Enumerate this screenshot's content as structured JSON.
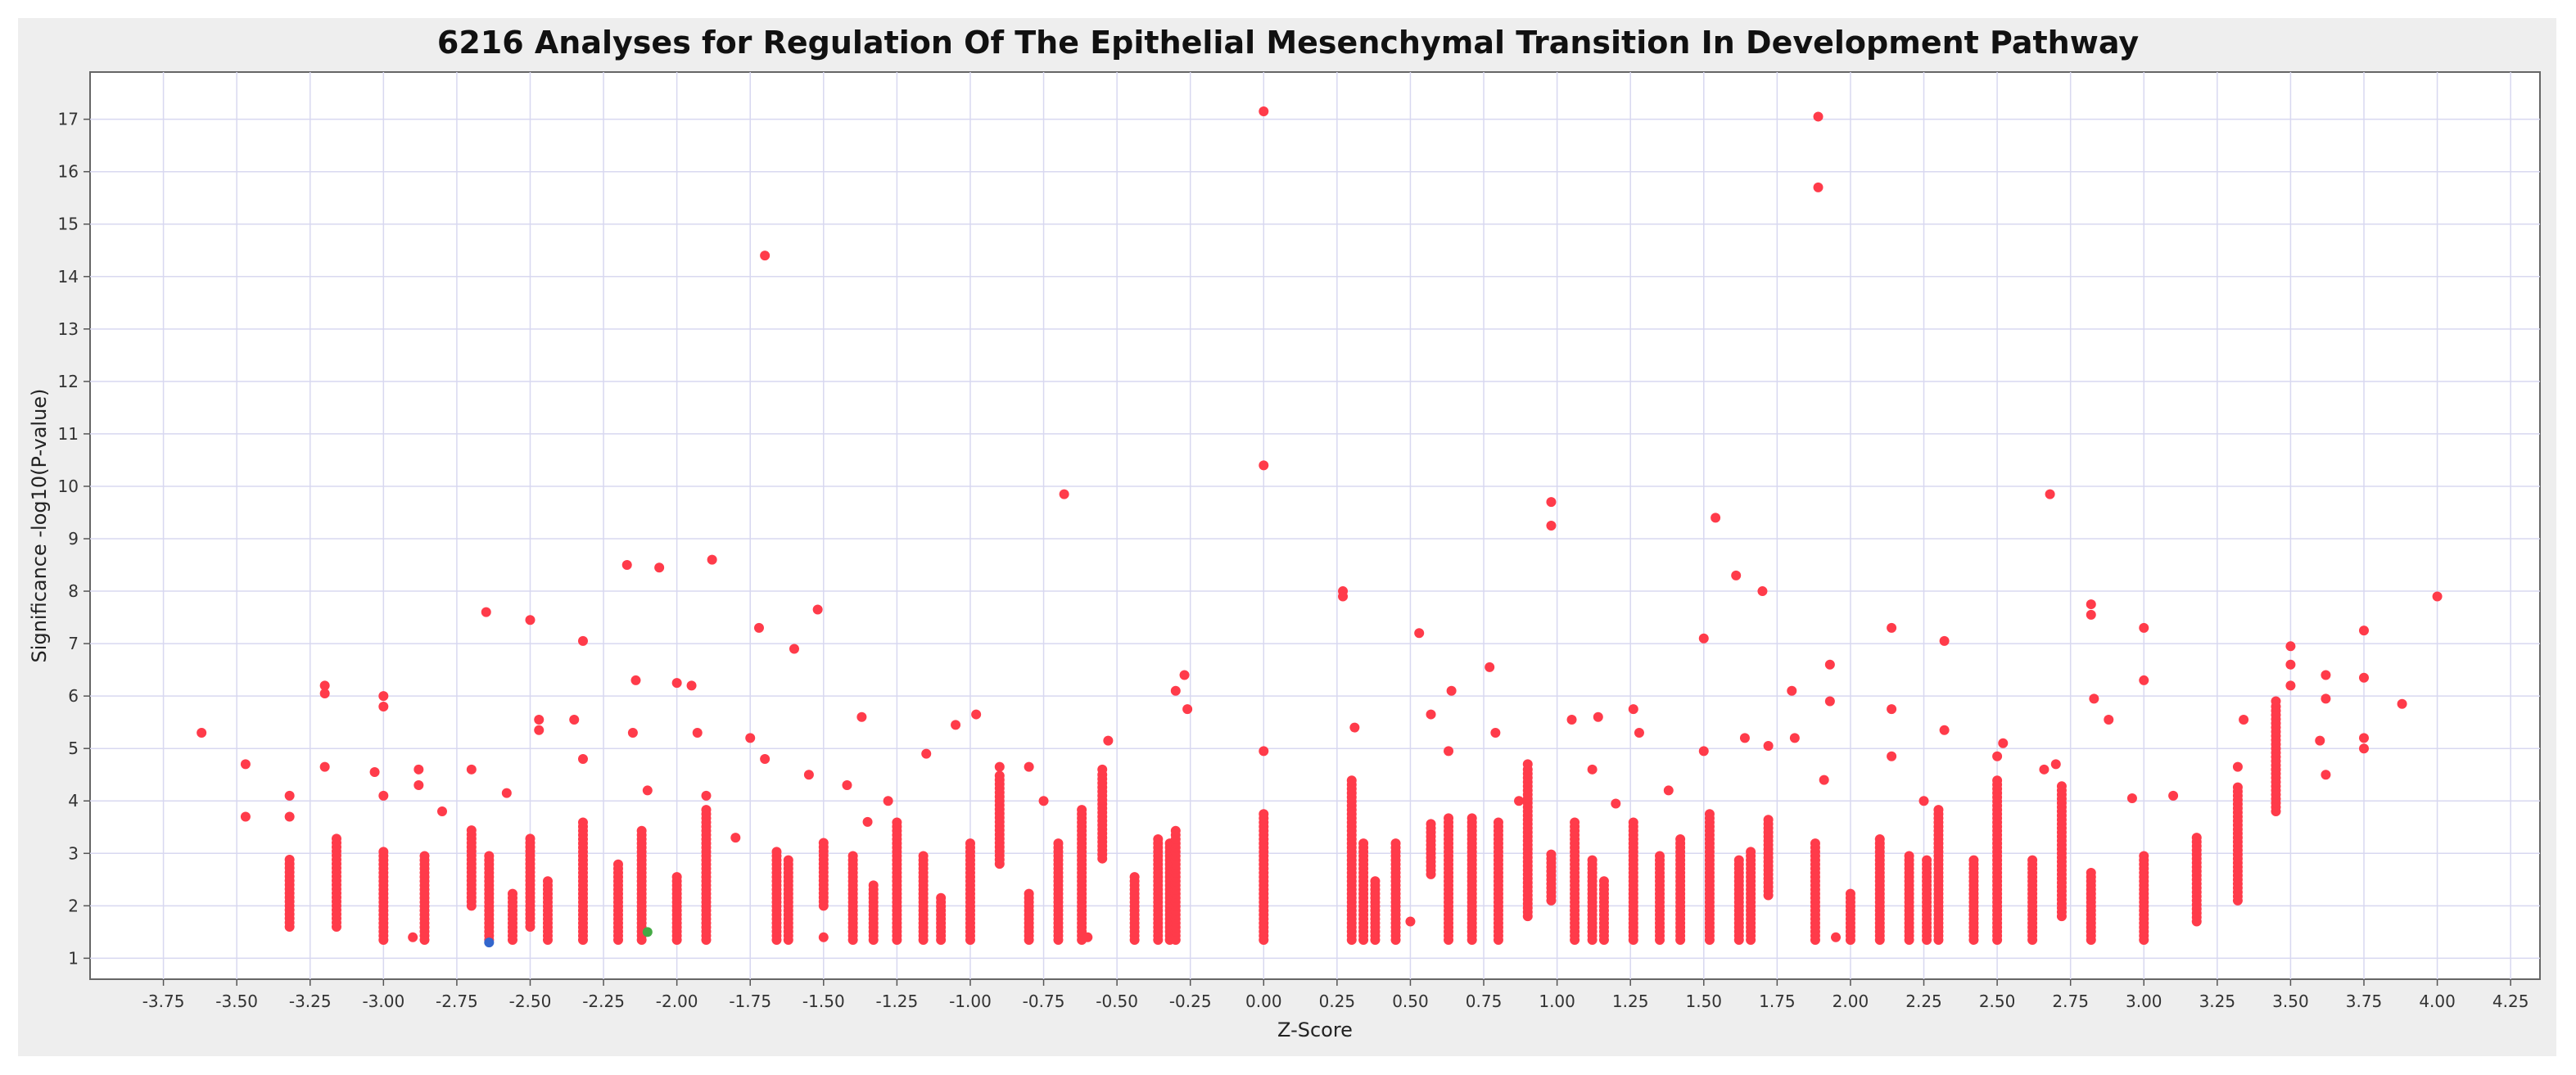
{
  "chart_data": {
    "type": "scatter",
    "title": "6216 Analyses for Regulation Of The Epithelial Mesenchymal Transition In Development Pathway",
    "xlabel": "Z-Score",
    "ylabel": "Significance -log10(P-value)",
    "xlim": [
      -4.0,
      4.35
    ],
    "ylim": [
      0.6,
      17.9
    ],
    "grid": true,
    "point_color": "#ff3b4a",
    "x_ticks": [
      {
        "v": -3.75,
        "label": "-3.75"
      },
      {
        "v": -3.5,
        "label": "-3.50"
      },
      {
        "v": -3.25,
        "label": "-3.25"
      },
      {
        "v": -3.0,
        "label": "-3.00"
      },
      {
        "v": -2.75,
        "label": "-2.75"
      },
      {
        "v": -2.5,
        "label": "-2.50"
      },
      {
        "v": -2.25,
        "label": "-2.25"
      },
      {
        "v": -2.0,
        "label": "-2.00"
      },
      {
        "v": -1.75,
        "label": "-1.75"
      },
      {
        "v": -1.5,
        "label": "-1.50"
      },
      {
        "v": -1.25,
        "label": "-1.25"
      },
      {
        "v": -1.0,
        "label": "-1.00"
      },
      {
        "v": -0.75,
        "label": "-0.75"
      },
      {
        "v": -0.5,
        "label": "-0.50"
      },
      {
        "v": -0.25,
        "label": "-0.25"
      },
      {
        "v": 0.0,
        "label": "0.00"
      },
      {
        "v": 0.25,
        "label": "0.25"
      },
      {
        "v": 0.5,
        "label": "0.50"
      },
      {
        "v": 0.75,
        "label": "0.75"
      },
      {
        "v": 1.0,
        "label": "1.00"
      },
      {
        "v": 1.25,
        "label": "1.25"
      },
      {
        "v": 1.5,
        "label": "1.50"
      },
      {
        "v": 1.75,
        "label": "1.75"
      },
      {
        "v": 2.0,
        "label": "2.00"
      },
      {
        "v": 2.25,
        "label": "2.25"
      },
      {
        "v": 2.5,
        "label": "2.50"
      },
      {
        "v": 2.75,
        "label": "2.75"
      },
      {
        "v": 3.0,
        "label": "3.00"
      },
      {
        "v": 3.25,
        "label": "3.25"
      },
      {
        "v": 3.5,
        "label": "3.50"
      },
      {
        "v": 3.75,
        "label": "3.75"
      },
      {
        "v": 4.0,
        "label": "4.00"
      },
      {
        "v": 4.25,
        "label": "4.25"
      }
    ],
    "y_ticks": [
      {
        "v": 1,
        "label": "1"
      },
      {
        "v": 2,
        "label": "2"
      },
      {
        "v": 3,
        "label": "3"
      },
      {
        "v": 4,
        "label": "4"
      },
      {
        "v": 5,
        "label": "5"
      },
      {
        "v": 6,
        "label": "6"
      },
      {
        "v": 7,
        "label": "7"
      },
      {
        "v": 8,
        "label": "8"
      },
      {
        "v": 9,
        "label": "9"
      },
      {
        "v": 10,
        "label": "10"
      },
      {
        "v": 11,
        "label": "11"
      },
      {
        "v": 12,
        "label": "12"
      },
      {
        "v": 13,
        "label": "13"
      },
      {
        "v": 14,
        "label": "14"
      },
      {
        "v": 15,
        "label": "15"
      },
      {
        "v": 16,
        "label": "16"
      },
      {
        "v": 17,
        "label": "17"
      }
    ],
    "columns": [
      {
        "x": -3.32,
        "y": [
          1.6,
          2.9
        ]
      },
      {
        "x": -3.16,
        "y": [
          1.6,
          3.3
        ]
      },
      {
        "x": -3.0,
        "y": [
          1.35,
          3.1
        ]
      },
      {
        "x": -2.86,
        "y": [
          1.35,
          3.0
        ]
      },
      {
        "x": -2.7,
        "y": [
          2.0,
          3.5
        ]
      },
      {
        "x": -2.64,
        "y": [
          1.35,
          3.0
        ]
      },
      {
        "x": -2.56,
        "y": [
          1.35,
          2.3
        ]
      },
      {
        "x": -2.5,
        "y": [
          1.6,
          3.3
        ]
      },
      {
        "x": -2.44,
        "y": [
          1.35,
          2.5
        ]
      },
      {
        "x": -2.32,
        "y": [
          1.35,
          3.6
        ]
      },
      {
        "x": -2.2,
        "y": [
          1.35,
          2.8
        ]
      },
      {
        "x": -2.12,
        "y": [
          1.35,
          3.5
        ]
      },
      {
        "x": -2.0,
        "y": [
          1.35,
          2.6
        ]
      },
      {
        "x": -1.9,
        "y": [
          1.35,
          3.9
        ]
      },
      {
        "x": -1.66,
        "y": [
          1.35,
          3.1
        ]
      },
      {
        "x": -1.62,
        "y": [
          1.35,
          2.9
        ]
      },
      {
        "x": -1.5,
        "y": [
          2.0,
          3.2
        ]
      },
      {
        "x": -1.4,
        "y": [
          1.35,
          3.0
        ]
      },
      {
        "x": -1.33,
        "y": [
          1.35,
          2.4
        ]
      },
      {
        "x": -1.25,
        "y": [
          1.35,
          3.6
        ]
      },
      {
        "x": -1.16,
        "y": [
          1.35,
          3.0
        ]
      },
      {
        "x": -1.1,
        "y": [
          1.35,
          2.2
        ]
      },
      {
        "x": -1.0,
        "y": [
          1.35,
          3.2
        ]
      },
      {
        "x": -0.9,
        "y": [
          2.8,
          4.5
        ]
      },
      {
        "x": -0.8,
        "y": [
          1.35,
          2.3
        ]
      },
      {
        "x": -0.7,
        "y": [
          1.35,
          3.2
        ]
      },
      {
        "x": -0.62,
        "y": [
          1.35,
          3.9
        ]
      },
      {
        "x": -0.55,
        "y": [
          2.9,
          4.5
        ]
      },
      {
        "x": -0.44,
        "y": [
          1.35,
          2.6
        ]
      },
      {
        "x": -0.36,
        "y": [
          1.35,
          3.3
        ]
      },
      {
        "x": -0.32,
        "y": [
          1.35,
          3.2
        ]
      },
      {
        "x": -0.3,
        "y": [
          1.35,
          3.5
        ]
      },
      {
        "x": 0.0,
        "y": [
          1.35,
          3.8
        ]
      },
      {
        "x": 0.3,
        "y": [
          1.35,
          4.4
        ]
      },
      {
        "x": 0.34,
        "y": [
          1.35,
          3.2
        ]
      },
      {
        "x": 0.38,
        "y": [
          1.35,
          2.5
        ]
      },
      {
        "x": 0.45,
        "y": [
          1.35,
          3.2
        ]
      },
      {
        "x": 0.57,
        "y": [
          2.6,
          3.6
        ]
      },
      {
        "x": 0.63,
        "y": [
          1.35,
          3.7
        ]
      },
      {
        "x": 0.71,
        "y": [
          1.35,
          3.7
        ]
      },
      {
        "x": 0.8,
        "y": [
          1.35,
          3.6
        ]
      },
      {
        "x": 0.9,
        "y": [
          1.8,
          4.6
        ]
      },
      {
        "x": 0.98,
        "y": [
          2.1,
          3.0
        ]
      },
      {
        "x": 1.06,
        "y": [
          1.35,
          3.6
        ]
      },
      {
        "x": 1.12,
        "y": [
          1.35,
          2.9
        ]
      },
      {
        "x": 1.16,
        "y": [
          1.35,
          2.5
        ]
      },
      {
        "x": 1.26,
        "y": [
          1.35,
          3.6
        ]
      },
      {
        "x": 1.35,
        "y": [
          1.35,
          3.0
        ]
      },
      {
        "x": 1.42,
        "y": [
          1.35,
          3.3
        ]
      },
      {
        "x": 1.52,
        "y": [
          1.35,
          3.8
        ]
      },
      {
        "x": 1.62,
        "y": [
          1.35,
          2.9
        ]
      },
      {
        "x": 1.66,
        "y": [
          1.35,
          3.1
        ]
      },
      {
        "x": 1.72,
        "y": [
          2.2,
          3.7
        ]
      },
      {
        "x": 1.88,
        "y": [
          1.35,
          3.2
        ]
      },
      {
        "x": 2.0,
        "y": [
          1.35,
          2.3
        ]
      },
      {
        "x": 2.1,
        "y": [
          1.35,
          3.3
        ]
      },
      {
        "x": 2.2,
        "y": [
          1.35,
          3.0
        ]
      },
      {
        "x": 2.26,
        "y": [
          1.35,
          2.9
        ]
      },
      {
        "x": 2.3,
        "y": [
          1.35,
          3.9
        ]
      },
      {
        "x": 2.42,
        "y": [
          1.35,
          2.9
        ]
      },
      {
        "x": 2.5,
        "y": [
          1.35,
          4.4
        ]
      },
      {
        "x": 2.62,
        "y": [
          1.35,
          2.9
        ]
      },
      {
        "x": 2.72,
        "y": [
          1.8,
          4.3
        ]
      },
      {
        "x": 2.82,
        "y": [
          1.35,
          2.7
        ]
      },
      {
        "x": 3.0,
        "y": [
          1.35,
          3.0
        ]
      },
      {
        "x": 3.18,
        "y": [
          1.7,
          3.3
        ]
      },
      {
        "x": 3.32,
        "y": [
          2.1,
          4.3
        ]
      },
      {
        "x": 3.45,
        "y": [
          3.8,
          5.8
        ]
      }
    ],
    "points": [
      {
        "x": 0.0,
        "y": 17.15
      },
      {
        "x": 1.89,
        "y": 17.05
      },
      {
        "x": 1.89,
        "y": 15.7
      },
      {
        "x": -1.7,
        "y": 14.4
      },
      {
        "x": 0.0,
        "y": 10.4
      },
      {
        "x": -0.68,
        "y": 9.85
      },
      {
        "x": 2.68,
        "y": 9.85
      },
      {
        "x": 0.98,
        "y": 9.7
      },
      {
        "x": 0.98,
        "y": 9.25
      },
      {
        "x": 1.54,
        "y": 9.4
      },
      {
        "x": -1.88,
        "y": 8.6
      },
      {
        "x": -2.17,
        "y": 8.5
      },
      {
        "x": -2.06,
        "y": 8.45
      },
      {
        "x": 1.61,
        "y": 8.3
      },
      {
        "x": 1.7,
        "y": 8.0
      },
      {
        "x": 0.27,
        "y": 8.0
      },
      {
        "x": 0.27,
        "y": 7.9
      },
      {
        "x": 4.0,
        "y": 7.9
      },
      {
        "x": 2.82,
        "y": 7.75
      },
      {
        "x": 2.82,
        "y": 7.55
      },
      {
        "x": -1.52,
        "y": 7.65
      },
      {
        "x": -2.65,
        "y": 7.6
      },
      {
        "x": -2.5,
        "y": 7.45
      },
      {
        "x": -1.72,
        "y": 7.3
      },
      {
        "x": 2.14,
        "y": 7.3
      },
      {
        "x": 3.0,
        "y": 7.3
      },
      {
        "x": 3.75,
        "y": 7.25
      },
      {
        "x": 0.53,
        "y": 7.2
      },
      {
        "x": 1.5,
        "y": 7.1
      },
      {
        "x": -2.32,
        "y": 7.05
      },
      {
        "x": 2.32,
        "y": 7.05
      },
      {
        "x": 3.5,
        "y": 6.95
      },
      {
        "x": -1.6,
        "y": 6.9
      },
      {
        "x": 3.5,
        "y": 6.6
      },
      {
        "x": 1.93,
        "y": 6.6
      },
      {
        "x": 0.77,
        "y": 6.55
      },
      {
        "x": -2.14,
        "y": 6.3
      },
      {
        "x": 3.0,
        "y": 6.3
      },
      {
        "x": -0.27,
        "y": 6.4
      },
      {
        "x": 3.62,
        "y": 6.4
      },
      {
        "x": -2.0,
        "y": 6.25
      },
      {
        "x": -1.95,
        "y": 6.2
      },
      {
        "x": -3.2,
        "y": 6.2
      },
      {
        "x": -3.2,
        "y": 6.05
      },
      {
        "x": 0.64,
        "y": 6.1
      },
      {
        "x": 1.8,
        "y": 6.1
      },
      {
        "x": -0.3,
        "y": 6.1
      },
      {
        "x": 3.5,
        "y": 6.2
      },
      {
        "x": 3.75,
        "y": 6.35
      },
      {
        "x": 2.83,
        "y": 5.95
      },
      {
        "x": 3.62,
        "y": 5.95
      },
      {
        "x": -3.0,
        "y": 6.0
      },
      {
        "x": -3.0,
        "y": 5.8
      },
      {
        "x": 3.88,
        "y": 5.85
      },
      {
        "x": 1.93,
        "y": 5.9
      },
      {
        "x": -0.26,
        "y": 5.75
      },
      {
        "x": 2.14,
        "y": 5.75
      },
      {
        "x": 1.26,
        "y": 5.75
      },
      {
        "x": 3.45,
        "y": 5.9
      },
      {
        "x": -3.62,
        "y": 5.3
      },
      {
        "x": -1.37,
        "y": 5.6
      },
      {
        "x": -0.98,
        "y": 5.65
      },
      {
        "x": 0.57,
        "y": 5.65
      },
      {
        "x": 2.88,
        "y": 5.55
      },
      {
        "x": 1.05,
        "y": 5.55
      },
      {
        "x": -2.35,
        "y": 5.55
      },
      {
        "x": 3.34,
        "y": 5.55
      },
      {
        "x": -2.47,
        "y": 5.55
      },
      {
        "x": -2.47,
        "y": 5.35
      },
      {
        "x": -1.05,
        "y": 5.45
      },
      {
        "x": 1.14,
        "y": 5.6
      },
      {
        "x": -1.93,
        "y": 5.3
      },
      {
        "x": 0.31,
        "y": 5.4
      },
      {
        "x": 1.28,
        "y": 5.3
      },
      {
        "x": 0.79,
        "y": 5.3
      },
      {
        "x": 1.64,
        "y": 5.2
      },
      {
        "x": 1.81,
        "y": 5.2
      },
      {
        "x": 2.32,
        "y": 5.35
      },
      {
        "x": 2.52,
        "y": 5.1
      },
      {
        "x": -0.53,
        "y": 5.15
      },
      {
        "x": -1.75,
        "y": 5.2
      },
      {
        "x": 0.63,
        "y": 4.95
      },
      {
        "x": 3.6,
        "y": 5.15
      },
      {
        "x": 3.75,
        "y": 5.2
      },
      {
        "x": 3.75,
        "y": 5.0
      },
      {
        "x": 1.72,
        "y": 5.05
      },
      {
        "x": -2.15,
        "y": 5.3
      },
      {
        "x": 3.62,
        "y": 4.5
      },
      {
        "x": 3.45,
        "y": 4.6
      },
      {
        "x": -3.47,
        "y": 4.7
      },
      {
        "x": -3.47,
        "y": 3.7
      },
      {
        "x": -3.2,
        "y": 4.65
      },
      {
        "x": -3.03,
        "y": 4.55
      },
      {
        "x": -2.7,
        "y": 4.6
      },
      {
        "x": -2.88,
        "y": 4.6
      },
      {
        "x": -2.88,
        "y": 4.3
      },
      {
        "x": -2.32,
        "y": 4.8
      },
      {
        "x": -1.55,
        "y": 4.5
      },
      {
        "x": -1.7,
        "y": 4.8
      },
      {
        "x": -1.15,
        "y": 4.9
      },
      {
        "x": -0.9,
        "y": 4.65
      },
      {
        "x": -0.8,
        "y": 4.65
      },
      {
        "x": -0.55,
        "y": 4.6
      },
      {
        "x": 0.0,
        "y": 4.95
      },
      {
        "x": 0.9,
        "y": 4.7
      },
      {
        "x": 1.12,
        "y": 4.6
      },
      {
        "x": 1.5,
        "y": 4.95
      },
      {
        "x": 2.66,
        "y": 4.6
      },
      {
        "x": 2.5,
        "y": 4.85
      },
      {
        "x": 3.32,
        "y": 4.65
      },
      {
        "x": 2.7,
        "y": 4.7
      },
      {
        "x": 2.14,
        "y": 4.85
      },
      {
        "x": -3.32,
        "y": 4.1
      },
      {
        "x": -3.32,
        "y": 3.7
      },
      {
        "x": -3.0,
        "y": 4.1
      },
      {
        "x": -2.8,
        "y": 3.8
      },
      {
        "x": -2.58,
        "y": 4.15
      },
      {
        "x": -2.1,
        "y": 4.2
      },
      {
        "x": -1.9,
        "y": 4.1
      },
      {
        "x": -1.42,
        "y": 4.3
      },
      {
        "x": -1.28,
        "y": 4.0
      },
      {
        "x": -0.75,
        "y": 4.0
      },
      {
        "x": 0.87,
        "y": 4.0
      },
      {
        "x": 1.2,
        "y": 3.95
      },
      {
        "x": 1.38,
        "y": 4.2
      },
      {
        "x": 1.91,
        "y": 4.4
      },
      {
        "x": 2.96,
        "y": 4.05
      },
      {
        "x": 3.1,
        "y": 4.1
      },
      {
        "x": 2.25,
        "y": 4.0
      },
      {
        "x": -1.8,
        "y": 3.3
      },
      {
        "x": -1.35,
        "y": 3.6
      },
      {
        "x": 0.5,
        "y": 1.7
      },
      {
        "x": -0.6,
        "y": 1.4
      },
      {
        "x": -1.5,
        "y": 1.4
      },
      {
        "x": -2.9,
        "y": 1.4
      },
      {
        "x": 1.95,
        "y": 1.4
      }
    ],
    "outlier_points": [
      {
        "x": -2.64,
        "y": 1.3,
        "color": "#3366cc"
      },
      {
        "x": -2.1,
        "y": 1.5,
        "color": "#44aa44"
      }
    ]
  }
}
